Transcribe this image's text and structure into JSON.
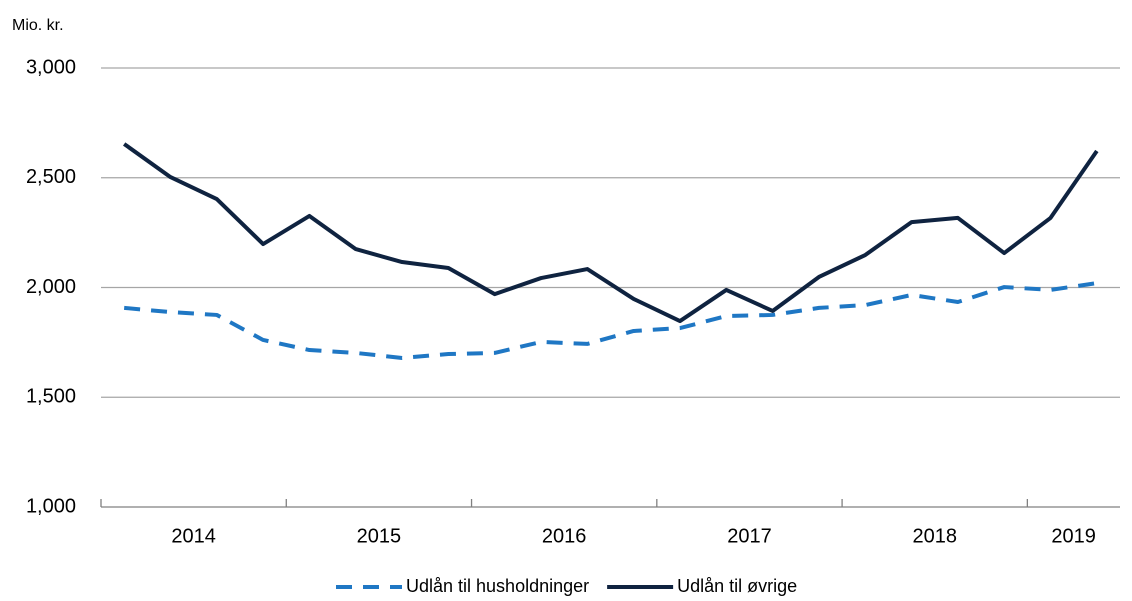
{
  "chart_data": {
    "type": "line",
    "y_unit_label": "Mio. kr.",
    "categories": [
      null,
      "2014",
      null,
      null,
      null,
      "2015",
      null,
      null,
      null,
      "2016",
      null,
      null,
      null,
      "2017",
      null,
      null,
      null,
      "2018",
      null,
      null,
      "2019",
      null
    ],
    "series": [
      {
        "name": "Udlån til husholdninger",
        "color": "#1f77c4",
        "dashed": true,
        "values": [
          1907,
          1888,
          1875,
          1761,
          1715,
          1702,
          1679,
          1697,
          1702,
          1752,
          1743,
          1802,
          1815,
          1870,
          1875,
          1907,
          1920,
          1966,
          1934,
          2002,
          1989,
          2020
        ]
      },
      {
        "name": "Udlån til øvrige",
        "color": "#0f2340",
        "dashed": false,
        "values": [
          2654,
          2503,
          2403,
          2198,
          2326,
          2175,
          2116,
          2089,
          1970,
          2043,
          2084,
          1948,
          1847,
          1989,
          1893,
          2048,
          2148,
          2298,
          2317,
          2157,
          2317,
          2622
        ]
      }
    ],
    "ylim": [
      1000,
      3000
    ],
    "yticks": [
      {
        "value": 1000,
        "label": "1,000"
      },
      {
        "value": 1500,
        "label": "1,500"
      },
      {
        "value": 2000,
        "label": "2,000"
      },
      {
        "value": 2500,
        "label": "2,500"
      },
      {
        "value": 3000,
        "label": "3,000"
      }
    ],
    "grid": true
  }
}
